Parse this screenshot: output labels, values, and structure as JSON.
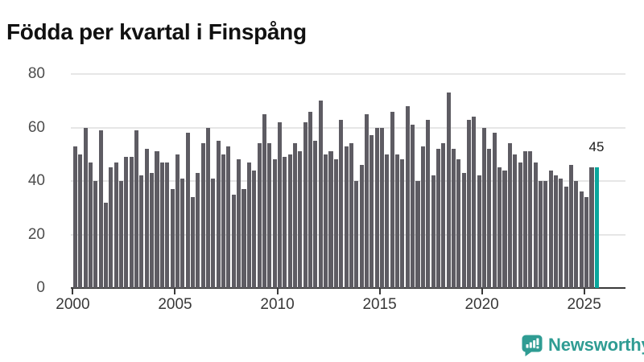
{
  "title": "Födda per kvartal i Finspång",
  "chart_data": {
    "type": "bar",
    "title": "Födda per kvartal i Finspång",
    "x_range": "2000 Q1 – 2025 Q3",
    "x_tick_labels": [
      "2000",
      "2005",
      "2010",
      "2015",
      "2020",
      "2025"
    ],
    "y_ticks": [
      0,
      20,
      40,
      60,
      80
    ],
    "ylim": [
      0,
      80
    ],
    "grid": "horizontal",
    "legend": "none",
    "bar_color": "#5e5c63",
    "highlight_color": "#0aa69c",
    "highlight_index": 102,
    "highlight_label": "45",
    "series": [
      {
        "name": "Födda per kvartal",
        "start": "2000 Q1",
        "frequency": "quarterly",
        "values": [
          53,
          50,
          60,
          47,
          40,
          59,
          32,
          45,
          47,
          40,
          49,
          49,
          59,
          42,
          52,
          43,
          51,
          47,
          47,
          37,
          50,
          41,
          58,
          34,
          43,
          54,
          60,
          41,
          55,
          50,
          53,
          35,
          48,
          37,
          47,
          44,
          54,
          65,
          54,
          48,
          62,
          49,
          50,
          54,
          51,
          62,
          66,
          55,
          70,
          50,
          51,
          48,
          63,
          53,
          54,
          40,
          46,
          65,
          57,
          60,
          60,
          50,
          66,
          50,
          48,
          68,
          61,
          40,
          53,
          63,
          42,
          52,
          54,
          73,
          52,
          48,
          43,
          63,
          64,
          42,
          60,
          52,
          58,
          45,
          44,
          54,
          50,
          47,
          51,
          51,
          47,
          40,
          40,
          44,
          42,
          41,
          38,
          46,
          40,
          36,
          34,
          45,
          45
        ]
      }
    ]
  },
  "annotation": {
    "last_value": "45"
  },
  "logo": {
    "text": "Newsworthy",
    "color": "#2f9c93",
    "icon": "newsworthy-speech-bubble-chart-icon"
  }
}
